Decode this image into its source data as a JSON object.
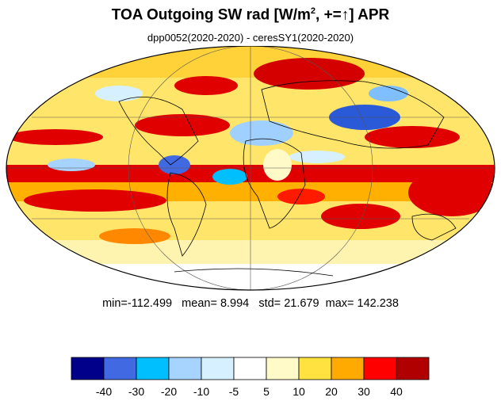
{
  "title": {
    "main": "TOA Outgoing SW rad [W/m",
    "sup": "2",
    "rest": ", +=",
    "arrow": "↑",
    "tail": "] APR"
  },
  "subtitle": "dpp0052(2020-2020) - ceresSY1(2020-2020)",
  "stats": {
    "min_label": "min=",
    "min": "-112.499",
    "mean_label": "mean=",
    "mean": "8.994",
    "std_label": "std=",
    "std": "21.679",
    "max_label": "max=",
    "max": "142.238"
  },
  "map": {
    "projection": "mollweide",
    "field": "difference pattern (model minus observation)",
    "ocean_outline_color": "#000000"
  },
  "colorbar": {
    "colors": [
      "#00008b",
      "#4169e1",
      "#00bfff",
      "#a6d3ff",
      "#d6f0ff",
      "#ffffff",
      "#fffac8",
      "#ffe240",
      "#ffaa00",
      "#ff0000",
      "#b00000"
    ],
    "labels": [
      "-40",
      "-30",
      "-20",
      "-10",
      "-5",
      "5",
      "10",
      "20",
      "30",
      "40"
    ]
  }
}
